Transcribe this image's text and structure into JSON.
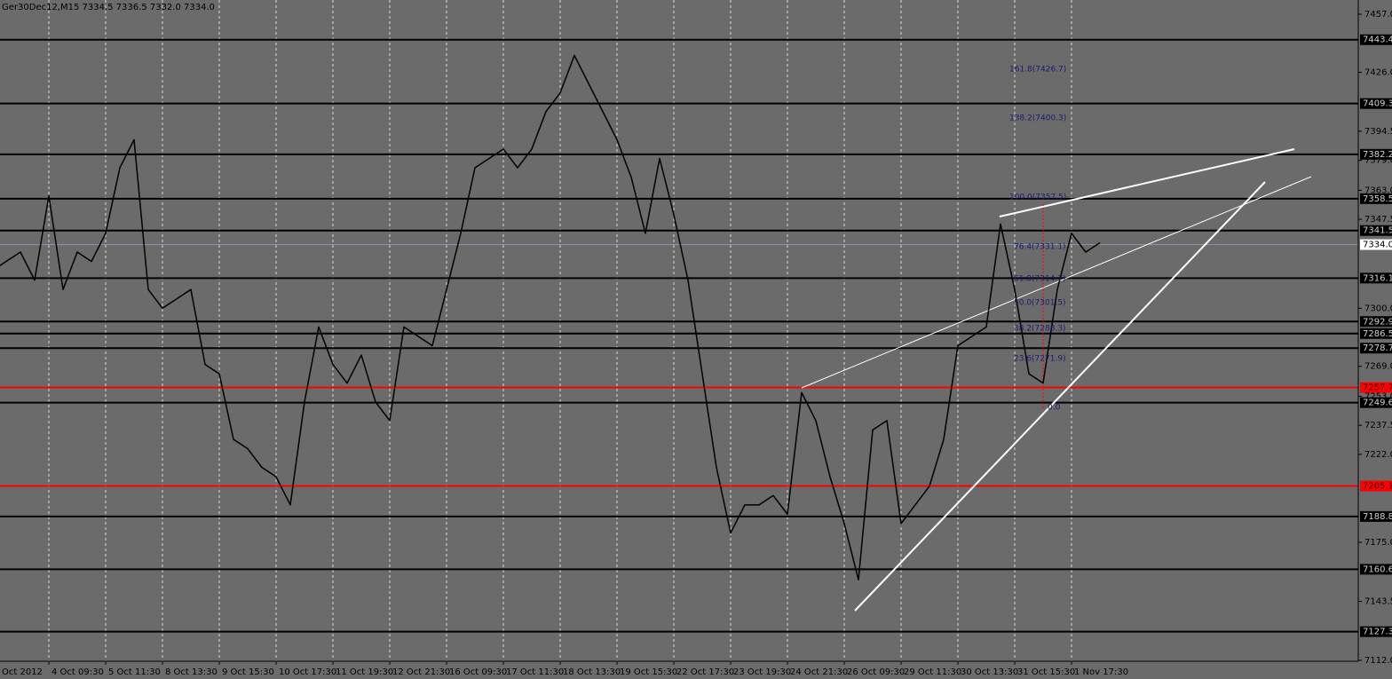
{
  "chart_data": {
    "type": "line",
    "title": "Ger30Dec12,M15  7334.5 7336.5 7332.0 7334.0",
    "categories": [
      "Oct 2012",
      null,
      null,
      null,
      "4 Oct 09:30",
      null,
      null,
      null,
      "5 Oct 11:30",
      null,
      null,
      null,
      "8 Oct 13:30",
      null,
      null,
      null,
      "9 Oct 15:30",
      null,
      null,
      null,
      "10 Oct 17:30",
      null,
      null,
      null,
      "11 Oct 19:30",
      null,
      null,
      null,
      "12 Oct 21:30",
      null,
      null,
      null,
      "16 Oct 09:30",
      null,
      null,
      null,
      "17 Oct 11:30",
      null,
      null,
      null,
      "18 Oct 13:30",
      null,
      null,
      null,
      "19 Oct 15:30",
      null,
      null,
      null,
      "22 Oct 17:30",
      null,
      null,
      null,
      "23 Oct 19:30",
      null,
      null,
      null,
      "24 Oct 21:30",
      null,
      null,
      null,
      "26 Oct 09:30",
      null,
      null,
      null,
      "29 Oct 11:30",
      null,
      null,
      null,
      "30 Oct 13:30",
      null,
      null,
      null,
      "31 Oct 15:30",
      null,
      null,
      null,
      "1 Nov 17:30",
      null,
      null
    ],
    "series": [
      {
        "name": "Ger30Dec12",
        "color": "#000000",
        "values": [
          7320,
          7325,
          7330,
          7315,
          7360,
          7310,
          7330,
          7325,
          7340,
          7375,
          7390,
          7310,
          7300,
          7305,
          7310,
          7270,
          7265,
          7230,
          7225,
          7215,
          7210,
          7195,
          7250,
          7290,
          7270,
          7260,
          7275,
          7250,
          7240,
          7290,
          7285,
          7280,
          7310,
          7340,
          7375,
          7380,
          7385,
          7375,
          7385,
          7405,
          7415,
          7435,
          7420,
          7405,
          7390,
          7370,
          7340,
          7380,
          7350,
          7315,
          7265,
          7215,
          7180,
          7195,
          7195,
          7200,
          7190,
          7255,
          7240,
          7210,
          7185,
          7155,
          7235,
          7240,
          7185,
          7195,
          7205,
          7230,
          7280,
          7285,
          7290,
          7345,
          7310,
          7265,
          7260,
          7310,
          7340,
          7330,
          7335
        ]
      }
    ],
    "ylim": [
      7111.5,
      7464.6
    ],
    "yticks": [
      {
        "value": 7457,
        "label": "7457.0"
      },
      {
        "value": 7426,
        "label": "7426.0"
      },
      {
        "value": 7394.5,
        "label": "7394.5"
      },
      {
        "value": 7379,
        "label": "7379.0"
      },
      {
        "value": 7363,
        "label": "7363.0"
      },
      {
        "value": 7347.5,
        "label": "7347.5"
      },
      {
        "value": 7300,
        "label": "7300.0"
      },
      {
        "value": 7269,
        "label": "7269.0"
      },
      {
        "value": 7253,
        "label": "7253.0"
      },
      {
        "value": 7237.5,
        "label": "7237.5"
      },
      {
        "value": 7222,
        "label": "7222.0"
      },
      {
        "value": 7175,
        "label": "7175.0"
      },
      {
        "value": 7143.5,
        "label": "7143.5"
      },
      {
        "value": 7112,
        "label": "7112.0"
      }
    ],
    "hlines": [
      {
        "value": 7443.4,
        "color": "#000000"
      },
      {
        "value": 7409.3,
        "color": "#000000"
      },
      {
        "value": 7382.2,
        "color": "#000000"
      },
      {
        "value": 7358.5,
        "color": "#000000"
      },
      {
        "value": 7341.5,
        "color": "#000000"
      },
      {
        "value": 7316.1,
        "color": "#000000"
      },
      {
        "value": 7292.9,
        "color": "#000000"
      },
      {
        "value": 7286.5,
        "color": "#000000"
      },
      {
        "value": 7278.7,
        "color": "#000000"
      },
      {
        "value": 7257.7,
        "color": "#ff0000"
      },
      {
        "value": 7249.6,
        "color": "#000000"
      },
      {
        "value": 7205.1,
        "color": "#ff0000"
      },
      {
        "value": 7188.8,
        "color": "#000000"
      },
      {
        "value": 7160.6,
        "color": "#000000"
      },
      {
        "value": 7127.3,
        "color": "#000000"
      }
    ],
    "current_price": {
      "value": 7334,
      "label": "7334.0"
    },
    "annotations": [
      "161.8(7426.7)",
      "138.2(7400.3)",
      "100.0(7357.5)",
      "76.4(7331.1)",
      "61.8(7314.7)",
      "50.0(7301.5)",
      "38.2(7288.3)",
      "23.6(7271.9)",
      "0.0"
    ],
    "grid": true
  }
}
